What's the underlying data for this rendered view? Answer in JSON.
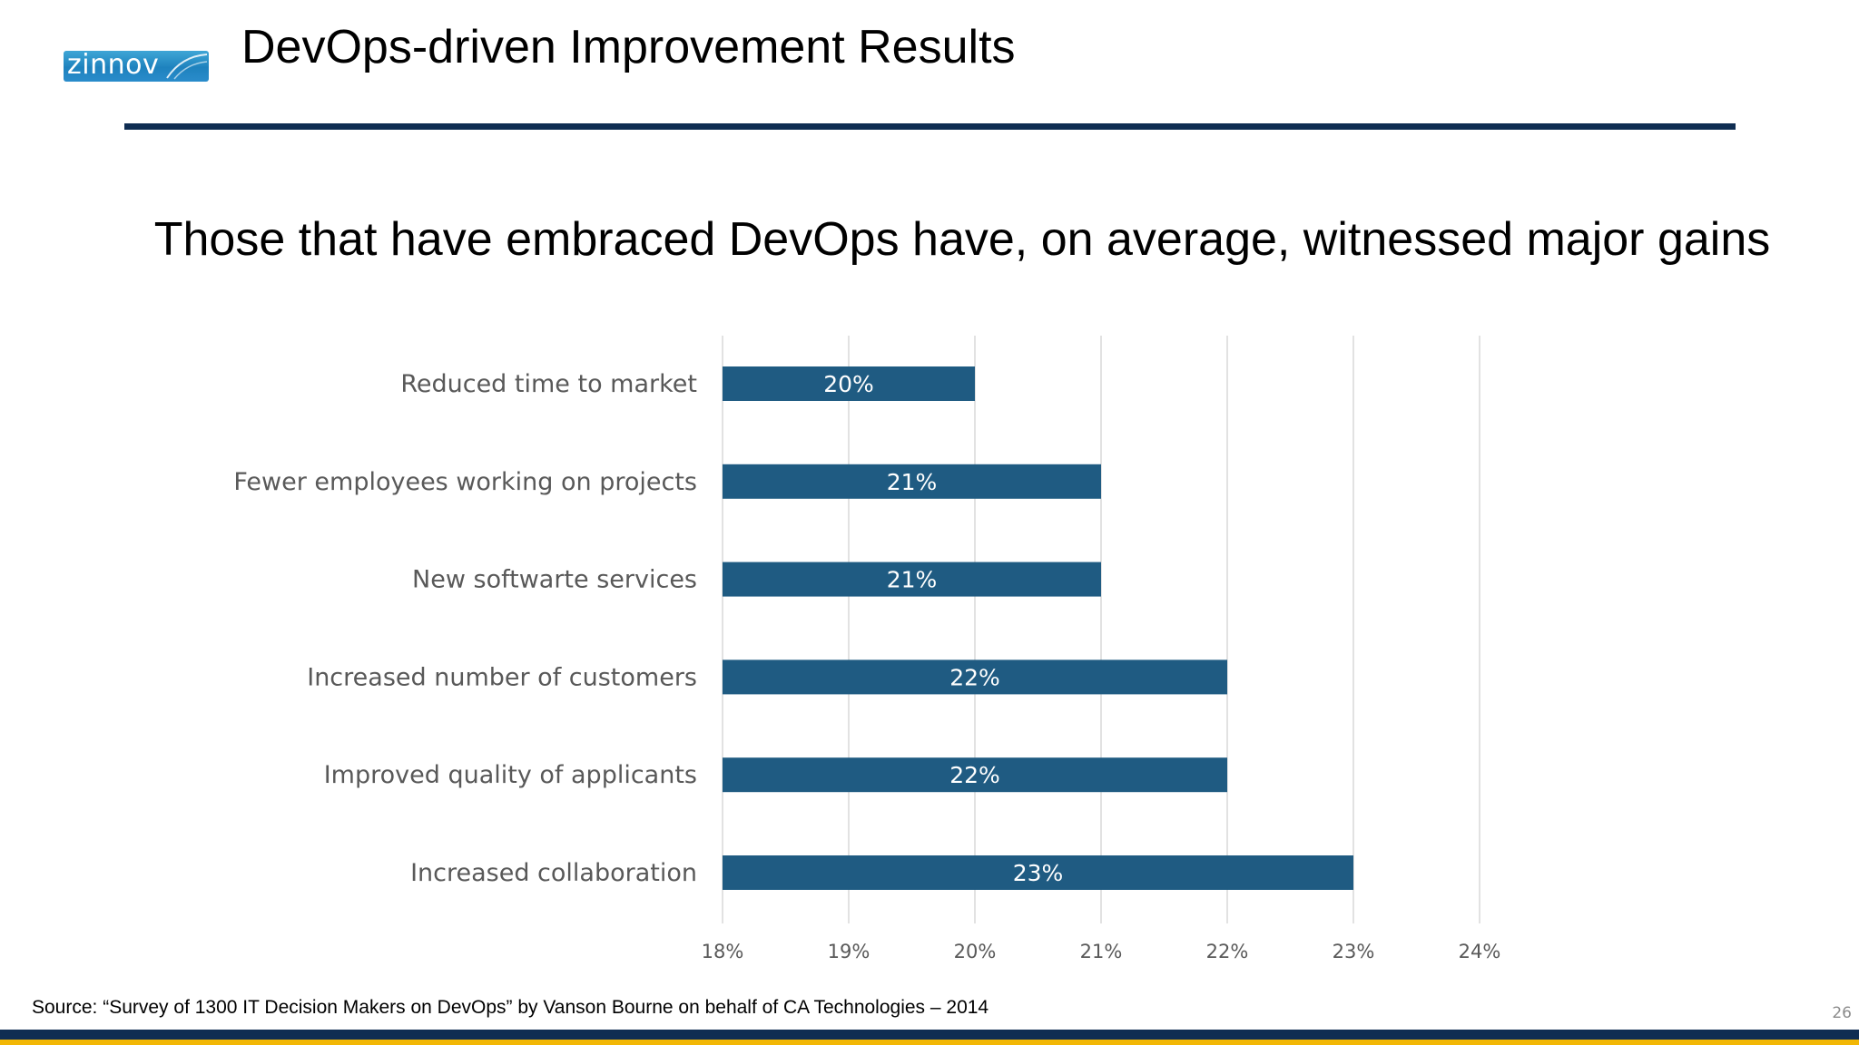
{
  "logo": {
    "text": "zinnov"
  },
  "slide": {
    "title": "DevOps-driven Improvement Results",
    "headline": "Those that have embraced DevOps have, on average, witnessed major gains",
    "source": "Source: “Survey of 1300 IT Decision Makers on DevOps” by Vanson Bourne on behalf of CA Technologies – 2014",
    "page_number": "26"
  },
  "colors": {
    "bar": "#1f5b82",
    "title_rule": "#0f2d52",
    "footer_navy": "#0f2d52",
    "footer_gold": "#f2b705",
    "gridline": "#d9d9d9",
    "label_text": "#595959"
  },
  "chart_data": {
    "type": "bar",
    "orientation": "horizontal",
    "categories": [
      "Reduced time to market",
      "Fewer employees working on projects",
      "New softwarte services",
      "Increased number of customers",
      "Improved quality of applicants",
      "Increased collaboration"
    ],
    "values": [
      20,
      21,
      21,
      22,
      22,
      23
    ],
    "data_labels": [
      "20%",
      "21%",
      "21%",
      "22%",
      "22%",
      "23%"
    ],
    "xlim": [
      18,
      24
    ],
    "x_ticks": [
      18,
      19,
      20,
      21,
      22,
      23,
      24
    ],
    "x_tick_labels": [
      "18%",
      "19%",
      "20%",
      "21%",
      "22%",
      "23%",
      "24%"
    ],
    "grid": true,
    "legend": "none"
  }
}
